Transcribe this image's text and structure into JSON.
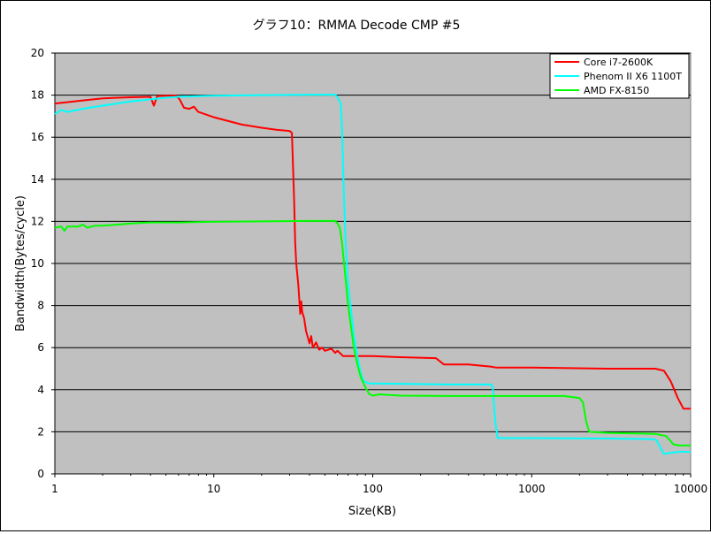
{
  "chart_data": {
    "type": "line",
    "title": "グラフ10：RMMA Decode CMP #5",
    "xlabel": "Size(KB)",
    "ylabel": "Bandwidth(Bytes/cycle)",
    "xscale": "log",
    "xlim": [
      1,
      10000
    ],
    "ylim": [
      0,
      20
    ],
    "x_ticks": [
      1,
      10,
      100,
      1000,
      10000
    ],
    "x_tick_labels": [
      "1",
      "10",
      "100",
      "1000",
      "10000"
    ],
    "y_ticks": [
      0,
      2,
      4,
      6,
      8,
      10,
      12,
      14,
      16,
      18,
      20
    ],
    "y_tick_labels": [
      "0",
      "2",
      "4",
      "6",
      "8",
      "10",
      "12",
      "14",
      "16",
      "18",
      "20"
    ],
    "grid": "horizontal",
    "legend_position": "top-right",
    "plot_background": "#c0c0c0",
    "series": [
      {
        "name": "Core i7-2600K",
        "color": "#ff0000",
        "points": [
          [
            1,
            17.6
          ],
          [
            1.5,
            17.75
          ],
          [
            2,
            17.85
          ],
          [
            3,
            17.9
          ],
          [
            4,
            17.92
          ],
          [
            4.2,
            17.5
          ],
          [
            4.4,
            17.95
          ],
          [
            5,
            17.97
          ],
          [
            5.8,
            17.98
          ],
          [
            6.1,
            17.8
          ],
          [
            6.5,
            17.4
          ],
          [
            7,
            17.35
          ],
          [
            7.5,
            17.45
          ],
          [
            8,
            17.2
          ],
          [
            10,
            16.95
          ],
          [
            15,
            16.6
          ],
          [
            20,
            16.45
          ],
          [
            25,
            16.35
          ],
          [
            30,
            16.3
          ],
          [
            31,
            16.2
          ],
          [
            32,
            13.0
          ],
          [
            32.5,
            11.0
          ],
          [
            33,
            10.0
          ],
          [
            34,
            9.0
          ],
          [
            35,
            7.6
          ],
          [
            35.5,
            8.2
          ],
          [
            36,
            7.7
          ],
          [
            37,
            7.4
          ],
          [
            38,
            6.8
          ],
          [
            40,
            6.2
          ],
          [
            41,
            6.55
          ],
          [
            42,
            6.0
          ],
          [
            44,
            6.25
          ],
          [
            46,
            5.9
          ],
          [
            48,
            6.0
          ],
          [
            50,
            5.85
          ],
          [
            55,
            5.95
          ],
          [
            58,
            5.75
          ],
          [
            60,
            5.85
          ],
          [
            62,
            5.75
          ],
          [
            65,
            5.6
          ],
          [
            100,
            5.6
          ],
          [
            140,
            5.55
          ],
          [
            250,
            5.5
          ],
          [
            280,
            5.2
          ],
          [
            400,
            5.2
          ],
          [
            550,
            5.1
          ],
          [
            600,
            5.05
          ],
          [
            1000,
            5.05
          ],
          [
            3000,
            5.0
          ],
          [
            6000,
            5.0
          ],
          [
            6800,
            4.9
          ],
          [
            7500,
            4.4
          ],
          [
            8300,
            3.6
          ],
          [
            9000,
            3.1
          ],
          [
            10000,
            3.1
          ]
        ]
      },
      {
        "name": "Phenom II X6 1100T",
        "color": "#00ffff",
        "points": [
          [
            1,
            17.1
          ],
          [
            1.1,
            17.3
          ],
          [
            1.2,
            17.2
          ],
          [
            1.5,
            17.35
          ],
          [
            2,
            17.5
          ],
          [
            3,
            17.7
          ],
          [
            4,
            17.8
          ],
          [
            5,
            17.88
          ],
          [
            6,
            17.92
          ],
          [
            8,
            17.95
          ],
          [
            10,
            17.97
          ],
          [
            20,
            18.0
          ],
          [
            40,
            18.02
          ],
          [
            58,
            18.02
          ],
          [
            60,
            17.9
          ],
          [
            63,
            17.6
          ],
          [
            64,
            16.5
          ],
          [
            66,
            13.0
          ],
          [
            68,
            10.5
          ],
          [
            70,
            9.0
          ],
          [
            73,
            7.8
          ],
          [
            76,
            6.6
          ],
          [
            80,
            5.6
          ],
          [
            84,
            4.8
          ],
          [
            88,
            4.4
          ],
          [
            95,
            4.3
          ],
          [
            150,
            4.28
          ],
          [
            300,
            4.25
          ],
          [
            560,
            4.25
          ],
          [
            570,
            4.0
          ],
          [
            590,
            2.5
          ],
          [
            610,
            1.7
          ],
          [
            1000,
            1.7
          ],
          [
            3000,
            1.68
          ],
          [
            5800,
            1.65
          ],
          [
            6100,
            1.6
          ],
          [
            6500,
            1.2
          ],
          [
            6800,
            0.95
          ],
          [
            7500,
            1.0
          ],
          [
            8500,
            1.05
          ],
          [
            10000,
            1.05
          ]
        ]
      },
      {
        "name": "AMD FX-8150",
        "color": "#00ff00",
        "points": [
          [
            1,
            11.7
          ],
          [
            1.1,
            11.75
          ],
          [
            1.15,
            11.55
          ],
          [
            1.2,
            11.75
          ],
          [
            1.4,
            11.75
          ],
          [
            1.5,
            11.85
          ],
          [
            1.6,
            11.7
          ],
          [
            1.8,
            11.8
          ],
          [
            2,
            11.8
          ],
          [
            2.5,
            11.85
          ],
          [
            3,
            11.9
          ],
          [
            4,
            11.95
          ],
          [
            5,
            11.95
          ],
          [
            6,
            11.95
          ],
          [
            8,
            11.97
          ],
          [
            10,
            11.98
          ],
          [
            20,
            12.0
          ],
          [
            40,
            12.02
          ],
          [
            58,
            12.02
          ],
          [
            60,
            11.9
          ],
          [
            62,
            11.7
          ],
          [
            64,
            11.0
          ],
          [
            66,
            10.0
          ],
          [
            68,
            9.0
          ],
          [
            70,
            8.0
          ],
          [
            73,
            7.0
          ],
          [
            76,
            6.0
          ],
          [
            80,
            5.2
          ],
          [
            84,
            4.6
          ],
          [
            90,
            4.1
          ],
          [
            95,
            3.8
          ],
          [
            100,
            3.72
          ],
          [
            110,
            3.78
          ],
          [
            150,
            3.72
          ],
          [
            300,
            3.7
          ],
          [
            1000,
            3.7
          ],
          [
            1600,
            3.7
          ],
          [
            2000,
            3.6
          ],
          [
            2100,
            3.4
          ],
          [
            2200,
            2.5
          ],
          [
            2300,
            2.0
          ],
          [
            3000,
            1.95
          ],
          [
            6000,
            1.9
          ],
          [
            7000,
            1.8
          ],
          [
            7800,
            1.4
          ],
          [
            8500,
            1.35
          ],
          [
            10000,
            1.35
          ]
        ]
      }
    ]
  }
}
